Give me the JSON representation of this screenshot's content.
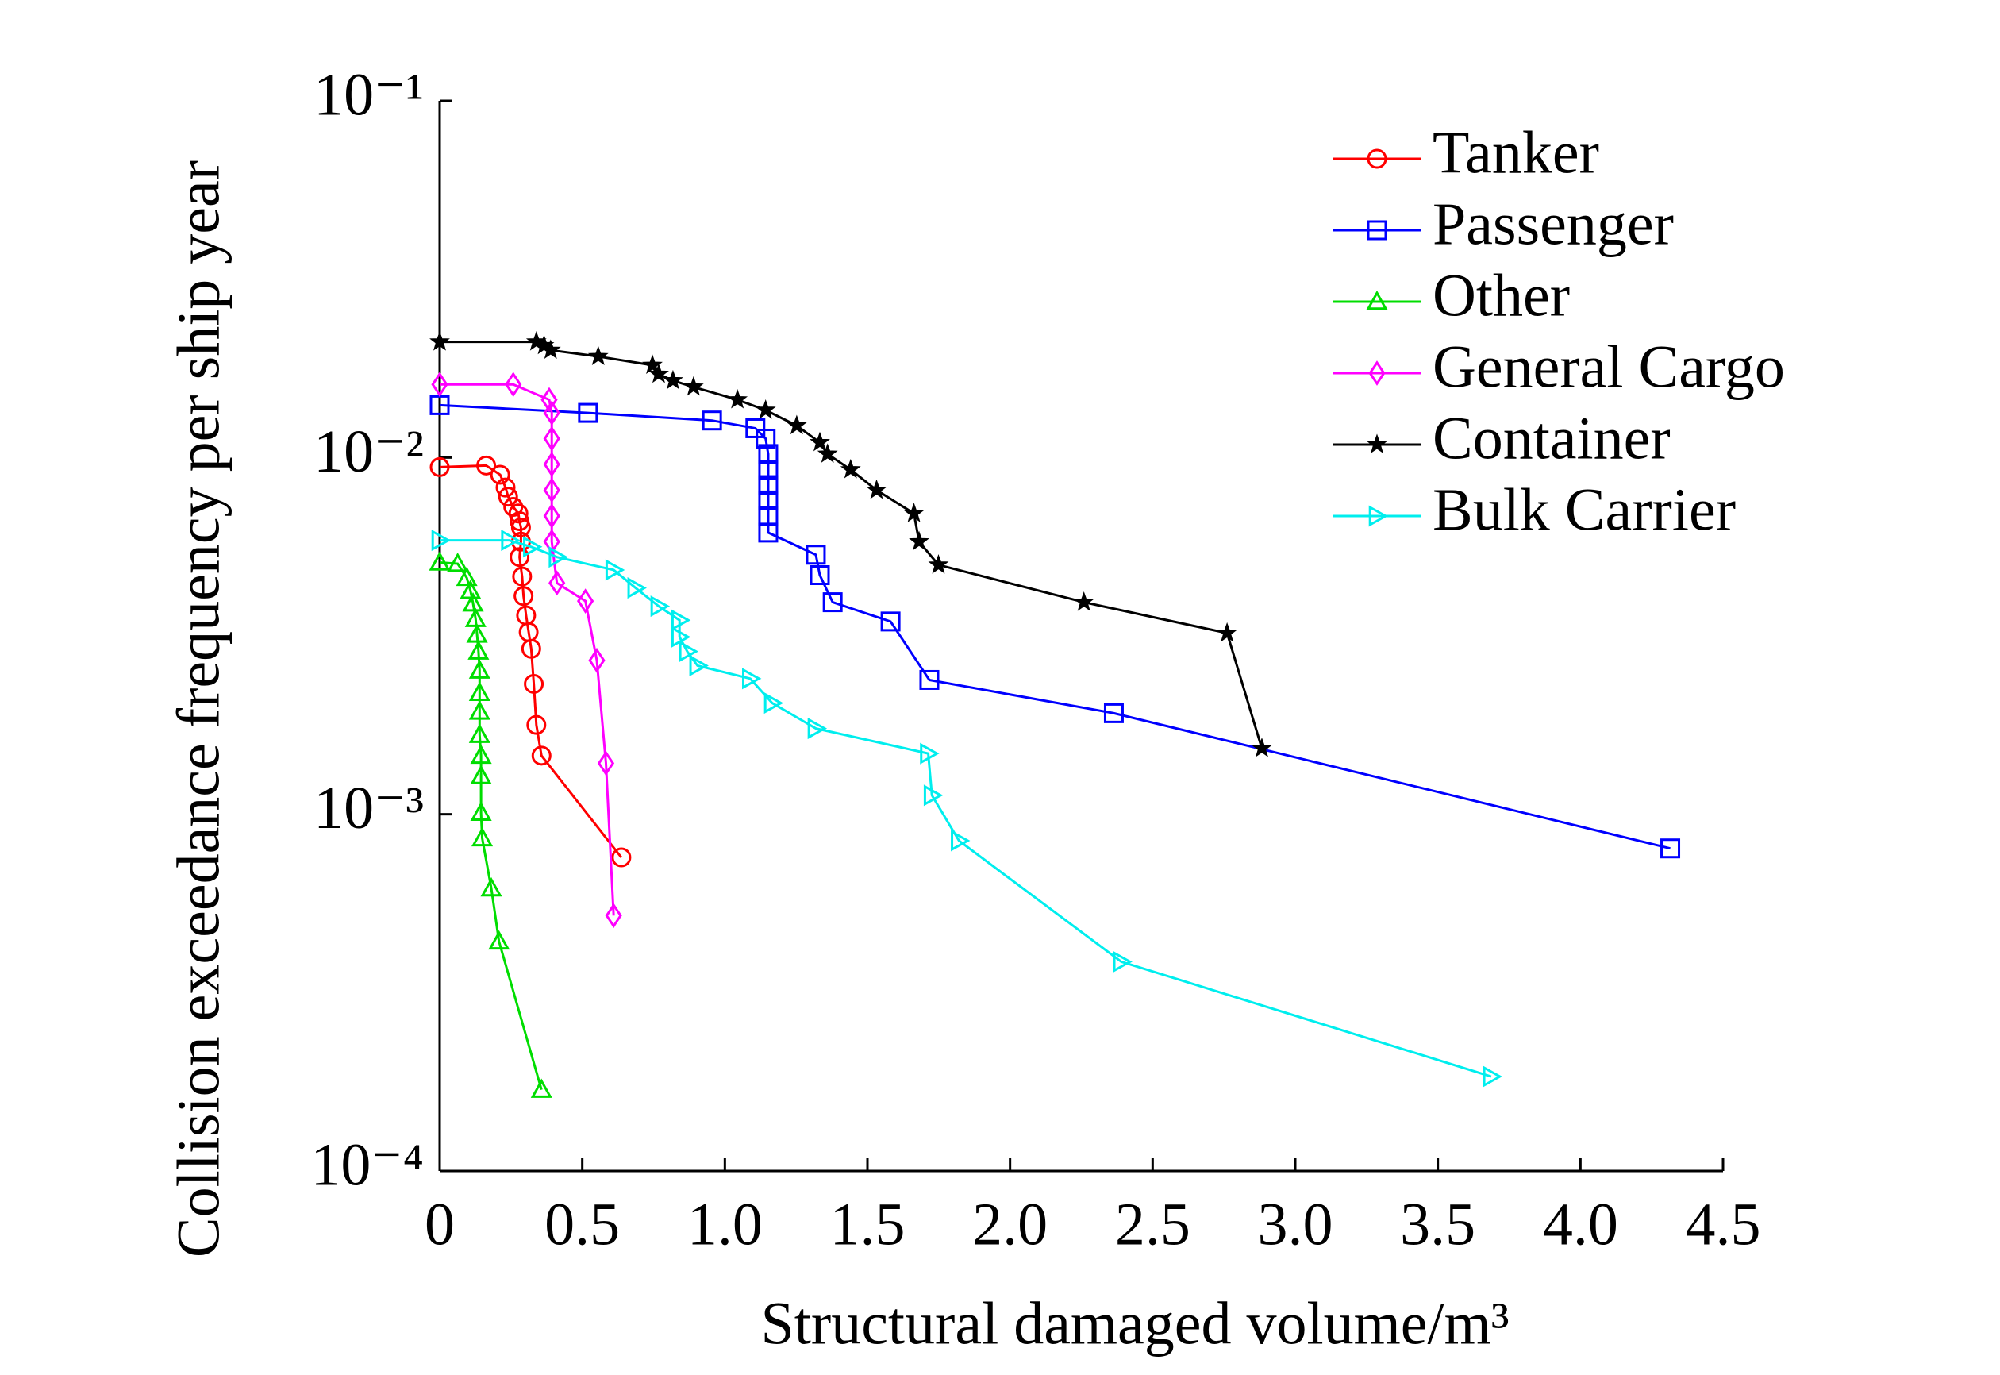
{
  "chart_data": {
    "type": "line",
    "xlabel": "Structural damaged volume/m³",
    "ylabel": "Collision exceedance frequency per ship year",
    "xlim": [
      0,
      4.5
    ],
    "xticks": [
      0,
      0.5,
      {
        "value": 1,
        "label": "1.0"
      },
      1.5,
      {
        "value": 2,
        "label": "2.0"
      },
      2.5,
      {
        "value": 3,
        "label": "3.0"
      },
      3.5,
      {
        "value": 4,
        "label": "4.0"
      },
      4.5
    ],
    "ylim": [
      0.0001,
      0.1
    ],
    "yticks": [
      {
        "value": 0.1,
        "label": "10⁻¹"
      },
      {
        "value": 0.01,
        "label": "10⁻²"
      },
      {
        "value": 0.001,
        "label": "10⁻³"
      },
      {
        "value": 0.0001,
        "label": "10⁻⁴"
      }
    ],
    "yscale": "log",
    "legend": "upper right",
    "series": [
      {
        "name": "Tanker",
        "color": "#ff0000",
        "marker": "circle",
        "x": [
          0,
          0.163,
          0.212,
          0.231,
          0.24,
          0.258,
          0.276,
          0.28,
          0.285,
          0.285,
          0.28,
          0.289,
          0.294,
          0.303,
          0.312,
          0.321,
          0.33,
          0.339,
          0.357,
          0.637
        ],
        "values": [
          0.0094,
          0.0095,
          0.00895,
          0.00824,
          0.00777,
          0.00727,
          0.00697,
          0.00663,
          0.00637,
          0.00581,
          0.00526,
          0.00464,
          0.00409,
          0.00361,
          0.00324,
          0.00291,
          0.00232,
          0.00178,
          0.00146,
          0.000757
        ]
      },
      {
        "name": "Passenger",
        "color": "#0000ff",
        "marker": "square",
        "x": [
          0,
          0.52,
          0.955,
          1.107,
          1.143,
          1.152,
          1.152,
          1.152,
          1.152,
          1.152,
          1.152,
          1.319,
          1.333,
          1.378,
          1.581,
          1.717,
          2.364,
          4.315
        ],
        "values": [
          0.01402,
          0.01334,
          0.0127,
          0.01208,
          0.0113,
          0.01023,
          0.00925,
          0.00837,
          0.00758,
          0.00686,
          0.00616,
          0.00534,
          0.00468,
          0.00393,
          0.00347,
          0.00238,
          0.00192,
          0.000802
        ]
      },
      {
        "name": "Other",
        "color": "#00dd00",
        "marker": "triangle",
        "x": [
          0,
          0.063,
          0.095,
          0.108,
          0.117,
          0.126,
          0.131,
          0.136,
          0.14,
          0.14,
          0.14,
          0.14,
          0.145,
          0.145,
          0.145,
          0.149,
          0.181,
          0.208,
          0.357
        ],
        "values": [
          0.00508,
          0.00504,
          0.0046,
          0.00423,
          0.0039,
          0.00353,
          0.00319,
          0.00286,
          0.00253,
          0.00219,
          0.00194,
          0.00167,
          0.00146,
          0.00128,
          0.00101,
          0.000857,
          0.00062,
          0.00044,
          0.000169
        ]
      },
      {
        "name": "General Cargo",
        "color": "#ff00ff",
        "marker": "diamond",
        "x": [
          0,
          0.258,
          0.384,
          0.393,
          0.393,
          0.393,
          0.393,
          0.393,
          0.393,
          0.411,
          0.511,
          0.551,
          0.583,
          0.61
        ],
        "values": [
          0.01603,
          0.01603,
          0.01452,
          0.01334,
          0.0113,
          0.00957,
          0.0081,
          0.00686,
          0.00581,
          0.00445,
          0.00396,
          0.0027,
          0.00139,
          0.00052
        ]
      },
      {
        "name": "Container",
        "color": "#000000",
        "marker": "star",
        "x": [
          0,
          0.339,
          0.366,
          0.389,
          0.556,
          0.746,
          0.768,
          0.818,
          0.89,
          1.044,
          1.143,
          1.252,
          1.333,
          1.36,
          1.441,
          1.532,
          1.663,
          1.681,
          1.749,
          2.259,
          2.761,
          2.883
        ],
        "values": [
          0.0211,
          0.0211,
          0.0206,
          0.02,
          0.0192,
          0.01815,
          0.01713,
          0.01643,
          0.01577,
          0.01452,
          0.01358,
          0.01229,
          0.01102,
          0.01023,
          0.00925,
          0.0081,
          0.00697,
          0.00581,
          0.005,
          0.00393,
          0.00322,
          0.00153
        ]
      },
      {
        "name": "Bulk Carrier",
        "color": "#00eeee",
        "marker": "rtriangle",
        "x": [
          0,
          0.244,
          0.321,
          0.411,
          0.61,
          0.687,
          0.768,
          0.841,
          0.841,
          0.868,
          0.904,
          1.089,
          1.166,
          1.319,
          1.713,
          1.726,
          1.821,
          2.39,
          3.687
        ],
        "values": [
          0.00586,
          0.00586,
          0.00562,
          0.00526,
          0.00484,
          0.00431,
          0.00383,
          0.0035,
          0.00314,
          0.00286,
          0.00261,
          0.0024,
          0.00205,
          0.00174,
          0.00148,
          0.00113,
          0.000843,
          0.000386,
          0.000184
        ]
      }
    ]
  }
}
